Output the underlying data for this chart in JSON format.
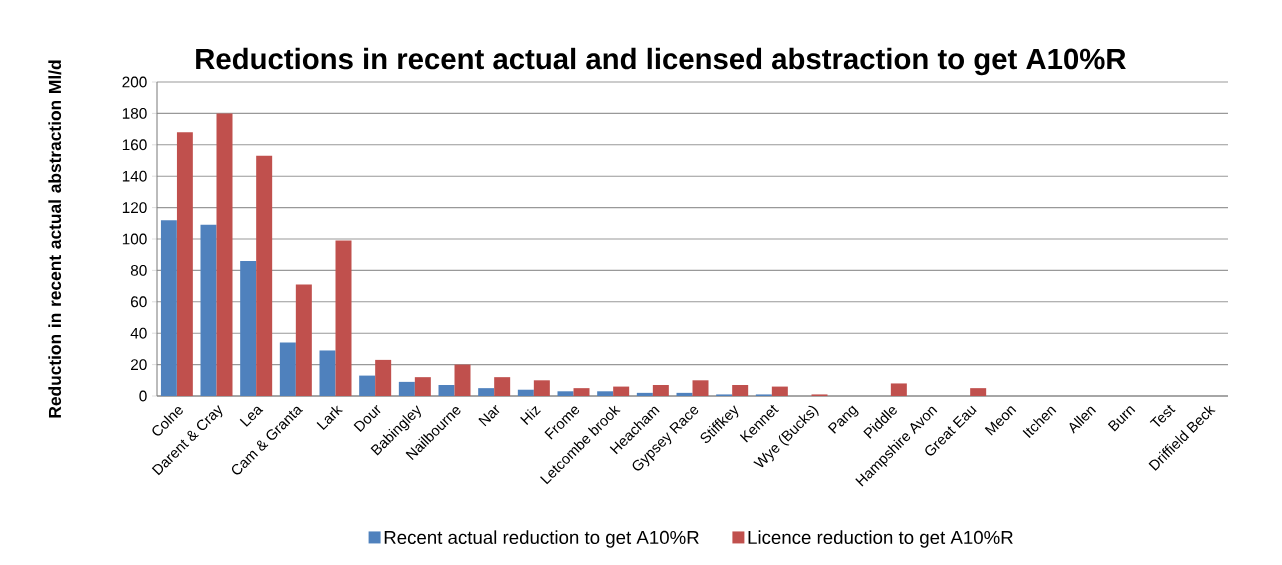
{
  "chart_data": {
    "type": "bar",
    "title": "Reductions in recent actual and licensed abstraction to get A10%R",
    "ylabel": "Reduction in recent actual abstraction Ml/d",
    "categories": [
      "Colne",
      "Darent & Cray",
      "Lea",
      "Cam & Granta",
      "Lark",
      "Dour",
      "Babingley",
      "Nailbourne",
      "Nar",
      "Hiz",
      "Frome",
      "Letcombe brook",
      "Heacham",
      "Gypsey Race",
      "Stiffkey",
      "Kennet",
      "Wye (Bucks)",
      "Pang",
      "Piddle",
      "Hampshire Avon",
      "Great Eau",
      "Meon",
      "Itchen",
      "Allen",
      "Burn",
      "Test",
      "Driffield Beck"
    ],
    "series": [
      {
        "name": "Recent actual reduction to get A10%R",
        "color": "#4f81bd",
        "values": [
          112,
          109,
          86,
          34,
          29,
          13,
          9,
          7,
          5,
          4,
          3,
          3,
          2,
          2,
          1,
          1,
          0,
          0,
          0,
          0,
          0,
          0,
          0,
          0,
          0,
          0,
          0
        ]
      },
      {
        "name": "Licence reduction to get A10%R",
        "color": "#c0504d",
        "values": [
          168,
          180,
          153,
          71,
          99,
          23,
          12,
          20,
          12,
          10,
          5,
          6,
          7,
          10,
          7,
          6,
          1,
          0,
          8,
          0,
          5,
          0,
          0,
          0,
          0,
          0,
          0
        ]
      }
    ],
    "ylim": [
      0,
      200
    ],
    "yticks": [
      0,
      20,
      40,
      60,
      80,
      100,
      120,
      140,
      160,
      180,
      200
    ],
    "grid": "y",
    "legend": "bottom"
  }
}
